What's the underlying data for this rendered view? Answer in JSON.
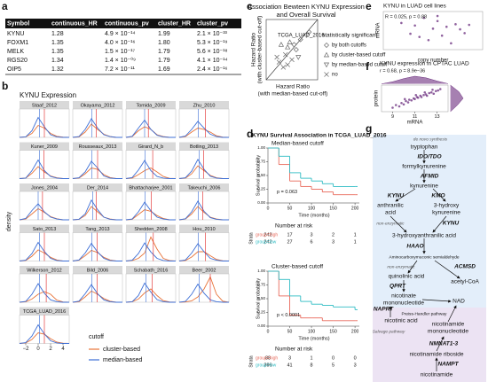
{
  "labels": [
    "a",
    "b",
    "c",
    "d",
    "e",
    "f",
    "g"
  ],
  "a": {
    "header": [
      "Symbol",
      "continuous_HR",
      "continuous_pv",
      "cluster_HR",
      "cluster_pv"
    ],
    "rows": [
      [
        "KYNU",
        "1.28",
        "4.9 × 10⁻¹⁴",
        "1.99",
        "2.1 × 10⁻³³"
      ],
      [
        "FOXM1",
        "1.35",
        "4.0 × 10⁻¹⁶",
        "1.80",
        "5.3 × 10⁻¹⁹"
      ],
      [
        "MELK",
        "1.35",
        "1.5 × 10⁻¹⁷",
        "1.79",
        "5.6 × 10⁻¹⁸"
      ],
      [
        "RGS20",
        "1.34",
        "1.4 × 10⁻⁰⁹",
        "1.79",
        "4.1 × 10⁻¹⁴"
      ],
      [
        "OIP5",
        "1.32",
        "7.2 × 10⁻¹¹",
        "1.69",
        "2.4 × 10⁻¹⁶"
      ]
    ]
  },
  "b": {
    "type": "line",
    "title": "KYNU Expression",
    "y_label": "density",
    "legend_title": "cutoff",
    "series": [
      {
        "name": "cluster-based",
        "color": "#e8743a"
      },
      {
        "name": "median-based",
        "color": "#3d6fd6"
      }
    ],
    "x": [
      -3,
      -2,
      -1,
      0,
      1,
      2,
      3,
      4,
      5
    ],
    "xlim": [
      -3,
      5
    ],
    "ylim": [
      0,
      1
    ],
    "xticks": [
      {
        "value": -2,
        "label": "−2"
      },
      0,
      2,
      4
    ],
    "panels": [
      {
        "name": "Staaf_2012",
        "values": [
          [
            0,
            0.02,
            0.15,
            0.45,
            0.35,
            0.15,
            0.04,
            0.01,
            0
          ],
          [
            0,
            0.02,
            0.25,
            0.75,
            0.4,
            0.1,
            0.02,
            0,
            0
          ]
        ],
        "cutoffs": [
          1.0,
          0.2
        ]
      },
      {
        "name": "Okayama_2012",
        "values": [
          [
            0,
            0.02,
            0.2,
            0.5,
            0.3,
            0.12,
            0.03,
            0,
            0
          ],
          [
            0,
            0.03,
            0.3,
            0.7,
            0.35,
            0.1,
            0.03,
            0,
            0
          ]
        ],
        "cutoffs": [
          0.8,
          0.1
        ]
      },
      {
        "name": "Tomida_2009",
        "values": [
          [
            0,
            0.03,
            0.25,
            0.4,
            0.3,
            0.1,
            0.03,
            0,
            0
          ],
          [
            0,
            0.04,
            0.35,
            0.65,
            0.3,
            0.08,
            0.02,
            0,
            0
          ]
        ],
        "cutoffs": [
          0.6,
          0
        ]
      },
      {
        "name": "Zhu_2010",
        "values": [
          [
            0,
            0.03,
            0.2,
            0.35,
            0.3,
            0.2,
            0.06,
            0.01,
            0
          ],
          [
            0,
            0.05,
            0.3,
            0.6,
            0.35,
            0.12,
            0.03,
            0,
            0
          ]
        ],
        "cutoffs": [
          1.2,
          0.1
        ]
      },
      {
        "name": "Kuner_2009",
        "values": [
          [
            0,
            0.02,
            0.2,
            0.45,
            0.25,
            0.1,
            0.03,
            0,
            0
          ],
          [
            0,
            0.02,
            0.3,
            0.7,
            0.3,
            0.08,
            0.02,
            0,
            0
          ]
        ],
        "cutoffs": [
          0.9,
          0.2
        ]
      },
      {
        "name": "Rousseaux_2013",
        "values": [
          [
            0,
            0.02,
            0.18,
            0.4,
            0.35,
            0.15,
            0.04,
            0,
            0
          ],
          [
            0,
            0.03,
            0.25,
            0.65,
            0.4,
            0.1,
            0.02,
            0,
            0
          ]
        ],
        "cutoffs": [
          1.0,
          0.1
        ]
      },
      {
        "name": "Girard_N_b",
        "values": [
          [
            0,
            0.02,
            0.15,
            0.3,
            0.4,
            0.25,
            0.08,
            0.01,
            0
          ],
          [
            0,
            0.04,
            0.32,
            0.68,
            0.3,
            0.08,
            0.02,
            0,
            0
          ]
        ],
        "cutoffs": [
          1.3,
          0.1
        ]
      },
      {
        "name": "Botling_2013",
        "values": [
          [
            0,
            0.02,
            0.18,
            0.48,
            0.3,
            0.12,
            0.03,
            0,
            0
          ],
          [
            0,
            0.03,
            0.28,
            0.72,
            0.35,
            0.09,
            0.02,
            0,
            0
          ]
        ],
        "cutoffs": [
          0.9,
          0.2
        ]
      },
      {
        "name": "Jones_2004",
        "values": [
          [
            0,
            0.03,
            0.22,
            0.42,
            0.28,
            0.12,
            0.04,
            0,
            0
          ],
          [
            0,
            0.05,
            0.35,
            0.6,
            0.3,
            0.1,
            0.03,
            0,
            0
          ]
        ],
        "cutoffs": [
          0.7,
          0
        ]
      },
      {
        "name": "Der_2014",
        "values": [
          [
            0,
            0.02,
            0.16,
            0.5,
            0.3,
            0.1,
            0.03,
            0,
            0
          ],
          [
            0,
            0.02,
            0.22,
            0.74,
            0.38,
            0.1,
            0.02,
            0,
            0
          ]
        ],
        "cutoffs": [
          0.8,
          0.2
        ]
      },
      {
        "name": "Bhattacharjee_2001",
        "values": [
          [
            0,
            0.02,
            0.2,
            0.38,
            0.32,
            0.16,
            0.05,
            0,
            0
          ],
          [
            0,
            0.03,
            0.3,
            0.66,
            0.34,
            0.1,
            0.03,
            0,
            0
          ]
        ],
        "cutoffs": [
          1.1,
          0.1
        ]
      },
      {
        "name": "Takeuchi_2006",
        "values": [
          [
            0,
            0.03,
            0.22,
            0.5,
            0.28,
            0.1,
            0.03,
            0,
            0
          ],
          [
            0,
            0.04,
            0.3,
            0.7,
            0.32,
            0.08,
            0.02,
            0,
            0
          ]
        ],
        "cutoffs": [
          0.8,
          0.1
        ]
      },
      {
        "name": "Sato_2013",
        "values": [
          [
            0,
            0.02,
            0.18,
            0.42,
            0.3,
            0.14,
            0.04,
            0,
            0
          ],
          [
            0,
            0.03,
            0.28,
            0.7,
            0.36,
            0.1,
            0.02,
            0,
            0
          ]
        ],
        "cutoffs": [
          1.0,
          0.2
        ]
      },
      {
        "name": "Tang_2013",
        "values": [
          [
            0,
            0.03,
            0.2,
            0.4,
            0.32,
            0.14,
            0.04,
            0,
            0
          ],
          [
            0,
            0.04,
            0.3,
            0.66,
            0.34,
            0.1,
            0.02,
            0,
            0
          ]
        ],
        "cutoffs": [
          0.9,
          0.1
        ]
      },
      {
        "name": "Shedden_2008",
        "values": [
          [
            0,
            0.02,
            0.1,
            0.3,
            0.9,
            0.45,
            0.1,
            0.02,
            0
          ],
          [
            0,
            0.03,
            0.28,
            0.68,
            0.34,
            0.1,
            0.02,
            0,
            0
          ]
        ],
        "cutoffs": [
          1.4,
          0.2
        ]
      },
      {
        "name": "Hou_2010",
        "values": [
          [
            0,
            0.02,
            0.15,
            0.35,
            0.35,
            0.2,
            0.06,
            0.01,
            0
          ],
          [
            0,
            0.04,
            0.3,
            0.65,
            0.35,
            0.1,
            0.03,
            0,
            0
          ]
        ],
        "cutoffs": [
          1.2,
          0.1
        ]
      },
      {
        "name": "Wilkerson_2012",
        "values": [
          [
            0,
            0.02,
            0.12,
            0.3,
            0.4,
            0.3,
            0.08,
            0.01,
            0
          ],
          [
            0,
            0.03,
            0.3,
            0.7,
            0.34,
            0.09,
            0.02,
            0,
            0
          ]
        ],
        "cutoffs": [
          1.3,
          0.2
        ]
      },
      {
        "name": "Bild_2006",
        "values": [
          [
            0,
            0.02,
            0.2,
            0.42,
            0.3,
            0.14,
            0.04,
            0,
            0
          ],
          [
            0,
            0.04,
            0.32,
            0.66,
            0.32,
            0.09,
            0.02,
            0,
            0
          ]
        ],
        "cutoffs": [
          0.9,
          0.1
        ]
      },
      {
        "name": "Schabath_2016",
        "values": [
          [
            0,
            0.02,
            0.12,
            0.35,
            0.5,
            0.25,
            0.06,
            0.01,
            0
          ],
          [
            0,
            0.02,
            0.25,
            0.72,
            0.38,
            0.1,
            0.02,
            0,
            0
          ]
        ],
        "cutoffs": [
          1.2,
          0.2
        ]
      },
      {
        "name": "Beer_2002",
        "values": [
          [
            0,
            0.01,
            0.05,
            0.2,
            0.5,
            0.95,
            0.3,
            0.04,
            0
          ],
          [
            0,
            0.03,
            0.3,
            0.68,
            0.34,
            0.09,
            0.02,
            0,
            0
          ]
        ],
        "cutoffs": [
          2.0,
          0.2
        ]
      },
      {
        "name": "TCGA_LUAD_2016",
        "values": [
          [
            0,
            0.02,
            0.15,
            0.4,
            0.35,
            0.18,
            0.05,
            0.01,
            0
          ],
          [
            0,
            0.03,
            0.28,
            0.7,
            0.36,
            0.1,
            0.02,
            0,
            0
          ]
        ],
        "cutoffs": [
          1.0,
          0.2
        ]
      }
    ]
  },
  "c": {
    "type": "scatter",
    "title": [
      "Association Bewteen KYNU Expression",
      "and Overall Survival"
    ],
    "x_label": [
      "Hazard Ratio",
      "(with median-based cut-off)"
    ],
    "y_label": [
      "Hazard Ratio",
      "(with cluster-based cut-off)"
    ],
    "annotation": "TCGA_LUAD_2016",
    "legend_title": "statistically significant",
    "legend": [
      {
        "label": "by both cutoffs",
        "shape": "diamond"
      },
      {
        "label": "by cluster-based cutoff",
        "shape": "triangle-up"
      },
      {
        "label": "by median-based cutoff",
        "shape": "triangle-down"
      },
      {
        "label": "no",
        "shape": "x"
      }
    ],
    "color": "#666",
    "xlim": [
      0.6,
      1.8
    ],
    "ylim": [
      0.6,
      1.8
    ],
    "points": [
      {
        "x": 1.6,
        "y": 1.55,
        "group": 0
      },
      {
        "x": 1.25,
        "y": 1.3,
        "group": 0
      },
      {
        "x": 1.3,
        "y": 1.2,
        "group": 0
      },
      {
        "x": 1.4,
        "y": 1.4,
        "group": 0
      },
      {
        "x": 1.15,
        "y": 1.35,
        "group": 1
      },
      {
        "x": 1.1,
        "y": 1.25,
        "group": 1
      },
      {
        "x": 0.95,
        "y": 1.3,
        "group": 1
      },
      {
        "x": 1.35,
        "y": 1.05,
        "group": 2
      },
      {
        "x": 1.2,
        "y": 1.0,
        "group": 3
      },
      {
        "x": 1.05,
        "y": 1.1,
        "group": 3
      },
      {
        "x": 0.9,
        "y": 0.95,
        "group": 3
      },
      {
        "x": 1.0,
        "y": 0.85,
        "group": 3
      },
      {
        "x": 0.85,
        "y": 1.05,
        "group": 3
      },
      {
        "x": 1.1,
        "y": 0.9,
        "group": 3
      }
    ]
  },
  "d": {
    "type": "line",
    "title": "KYNU Survival Association in TCGA_LUAD_2016",
    "y_label": "Survival probability",
    "x_label": "Time (months)",
    "risk_title": "Number at risk",
    "strata_label": "Strata",
    "x": [
      0,
      25,
      50,
      75,
      100,
      125,
      150,
      200
    ],
    "xlim": [
      0,
      210
    ],
    "ylim": [
      0,
      1
    ],
    "xticks": [
      0,
      50,
      100,
      150,
      200
    ],
    "yticks": [
      {
        "value": 0,
        "label": "0.00"
      },
      {
        "value": 0.25,
        "label": "0.25"
      },
      {
        "value": 0.5,
        "label": "0.50"
      },
      {
        "value": 0.75,
        "label": "0.75"
      },
      {
        "value": 1,
        "label": "1.00"
      }
    ],
    "plots": [
      {
        "subtitle": "Median-based cutoff",
        "p": "p = 0.063",
        "series": [
          {
            "name": "group=high",
            "color": "#e8685a",
            "values": [
              1,
              0.7,
              0.4,
              0.3,
              0.25,
              0.2,
              0.15,
              0.15
            ]
          },
          {
            "name": "group=low",
            "color": "#2fbcc4",
            "values": [
              1,
              0.85,
              0.55,
              0.45,
              0.4,
              0.35,
              0.3,
              0.3
            ]
          }
        ],
        "risk": [
          [
            242,
            17,
            3,
            2,
            1
          ],
          [
            242,
            27,
            6,
            3,
            1
          ]
        ]
      },
      {
        "subtitle": "Cluster-based cutoff",
        "p": "p < 0.0001",
        "series": [
          {
            "name": "group=high",
            "color": "#e8685a",
            "values": [
              1,
              0.55,
              0.2,
              0.15,
              0.15,
              0.1,
              0.1,
              0.1
            ]
          },
          {
            "name": "group=low",
            "color": "#2fbcc4",
            "values": [
              1,
              0.85,
              0.55,
              0.45,
              0.4,
              0.38,
              0.35,
              0.3
            ]
          }
        ],
        "risk": [
          [
            88,
            3,
            1,
            0,
            0
          ],
          [
            396,
            41,
            8,
            5,
            3
          ]
        ]
      }
    ]
  },
  "e": {
    "type": "scatter",
    "title": "KYNU in LUAD cell lines",
    "annotation": "R = 0.025, p = 0.88",
    "x_label": "copy number",
    "y_label": "mRNA",
    "color": "#6a2c7d",
    "xlim": [
      -1,
      1.2
    ],
    "ylim": [
      -3,
      3
    ],
    "x": [
      -0.6,
      -0.4,
      -0.3,
      -0.1,
      0,
      0.1,
      0.2,
      0.3,
      0.4,
      0.5,
      0.6,
      0.7,
      0.8,
      0.2,
      -0.2,
      0.9
    ],
    "y": [
      1.2,
      -0.5,
      0.8,
      2.0,
      -1.5,
      0.3,
      1.5,
      -0.8,
      0.6,
      -2.0,
      1.0,
      0.2,
      -0.4,
      2.3,
      -1.0,
      0.9
    ]
  },
  "f": {
    "type": "scatter",
    "title": "KYNU expression in CPTAC LUAD",
    "annotation": "r = 0.68, p = 8.9e−36",
    "x_label": "mRNA",
    "y_label": "protein",
    "color": "#6a2c7d",
    "xlim": [
      8,
      14
    ],
    "ylim": [
      -2,
      2
    ],
    "xticks": [
      9,
      11,
      13
    ],
    "x": [
      9.0,
      9.3,
      9.6,
      9.8,
      10.0,
      10.2,
      10.4,
      10.5,
      10.7,
      10.9,
      11.0,
      11.2,
      11.3,
      11.5,
      11.6,
      11.8,
      12.0,
      12.1,
      12.3,
      12.5,
      12.7,
      12.9,
      13.1,
      13.3,
      10.1,
      11.1,
      11.9,
      12.6
    ],
    "y": [
      -1.4,
      -1.0,
      -1.2,
      -0.7,
      -0.9,
      -0.4,
      -0.6,
      -0.2,
      -0.3,
      0.0,
      -0.1,
      0.2,
      0.1,
      0.4,
      0.2,
      0.5,
      0.6,
      0.4,
      0.8,
      0.9,
      0.7,
      1.1,
      1.2,
      1.4,
      -0.1,
      0.5,
      0.9,
      1.3
    ],
    "x_density": {
      "x": [
        8,
        9,
        10,
        11,
        12,
        13,
        14
      ],
      "values": [
        0.02,
        0.15,
        0.35,
        0.5,
        0.4,
        0.2,
        0.03
      ]
    },
    "y_density": {
      "y": [
        -2,
        -1,
        0,
        1,
        2
      ],
      "values": [
        0.05,
        0.3,
        0.5,
        0.35,
        0.05
      ]
    }
  },
  "g": {
    "labels": [
      "de novo synthesis",
      "tryptophan",
      "IDO/TDO",
      "formylkynurenine",
      "AFMID",
      "kynurenine",
      "KYNU",
      "KMO",
      "anthranilic",
      "acid",
      "3-hydroxy",
      "kynurenine",
      "non-enzymatic",
      "KYNU",
      "3-hydroxyanthranilic acid",
      "HAAO",
      "Aminocarboxymuconic semialdehyde",
      "ACMSD",
      "non-enzymatic",
      "quinolinic acid",
      "acetyl-CoA",
      "QPRT",
      "nicotinate",
      "mononucleotide",
      "NAD",
      "NAPRT",
      "Preiss-Handler pathway",
      "nicotinic acid",
      "Salvage pathway",
      "nicotinamide",
      "mononucleotide",
      "NMNAT1-3",
      "nicotinamide riboside",
      "NAMPT",
      "nicotinamide"
    ]
  }
}
